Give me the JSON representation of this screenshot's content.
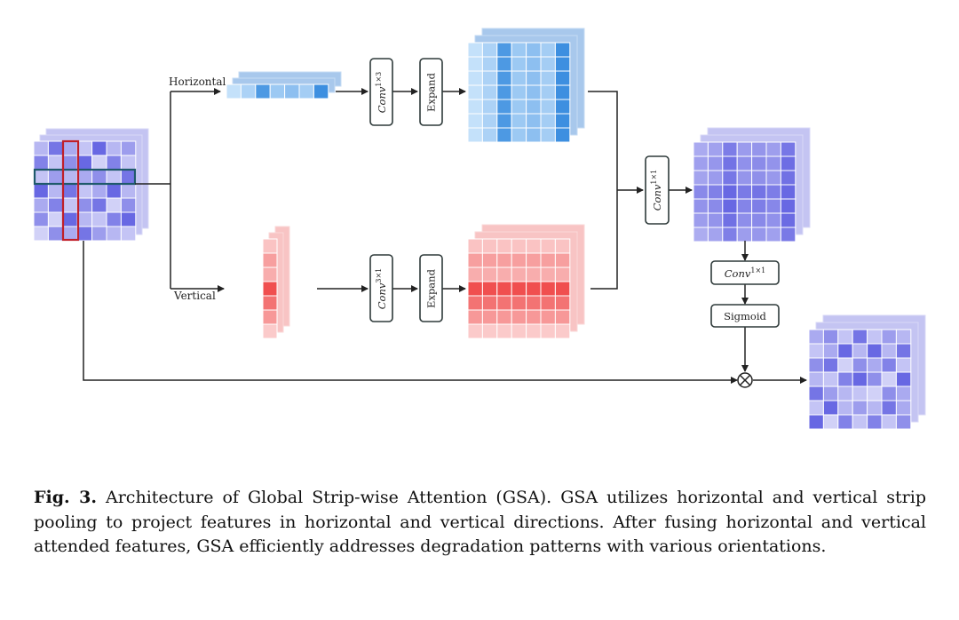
{
  "diagram": {
    "labels": {
      "horizontal": "Horizontal",
      "vertical": "Vertical"
    },
    "blocks": {
      "conv_h_base": "Conv",
      "conv_h_sup": "1×3",
      "expand_h": "Expand",
      "conv_v_base": "Conv",
      "conv_v_sup": "3×1",
      "expand_v": "Expand",
      "conv_fuse_base": "Conv",
      "conv_fuse_sup": "1×1",
      "conv_out_base": "Conv",
      "conv_out_sup": "1×1",
      "sigmoid": "Sigmoid"
    },
    "multiply_symbol": "⊗",
    "colors": {
      "blue_dark": "#3d8fe0",
      "blue_light": "#dcefff",
      "red_dark": "#f04f4f",
      "red_light": "#fde0e0",
      "purple_dark": "#5b5be0",
      "purple_light": "#dedefa",
      "purple_stack": "#c4c4f2",
      "strip_outline_h": "#1f5a6b",
      "strip_outline_v": "#c0202a"
    }
  },
  "caption": {
    "fig_label": "Fig. 3.",
    "text": " Architecture of Global Strip-wise Attention (GSA). GSA utilizes horizontal and vertical strip pooling to project features in horizontal and vertical directions. After fusing horizontal and vertical attended features, GSA efficiently addresses degradation patterns with various orientations."
  }
}
